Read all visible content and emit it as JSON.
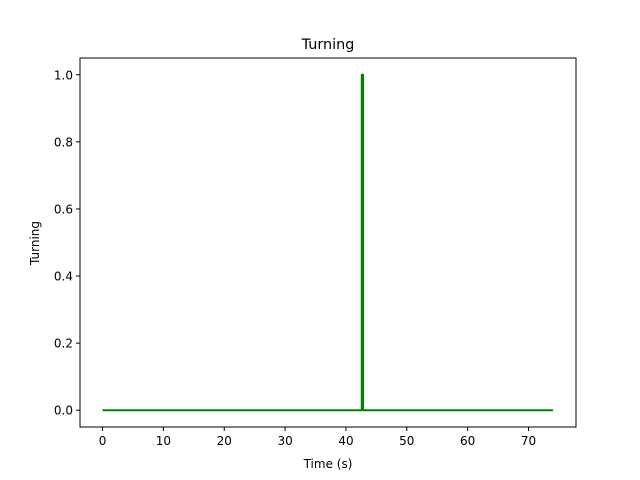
{
  "chart_data": {
    "type": "line",
    "title": "Turning",
    "xlabel": "Time (s)",
    "ylabel": "Turning",
    "xlim": [
      -3.7,
      77.8
    ],
    "ylim": [
      -0.05,
      1.05
    ],
    "xticks": [
      0,
      10,
      20,
      30,
      40,
      50,
      60,
      70
    ],
    "yticks": [
      0.0,
      0.2,
      0.4,
      0.6,
      0.8,
      1.0
    ],
    "xtick_labels": [
      "0",
      "10",
      "20",
      "30",
      "40",
      "50",
      "60",
      "70"
    ],
    "ytick_labels": [
      "0.0",
      "0.2",
      "0.4",
      "0.6",
      "0.8",
      "1.0"
    ],
    "grid": false,
    "series": [
      {
        "color": "#008000",
        "x": [
          0,
          42.6,
          42.6,
          42.8,
          42.8,
          74
        ],
        "y": [
          0,
          0,
          1,
          1,
          0,
          0
        ]
      }
    ]
  }
}
